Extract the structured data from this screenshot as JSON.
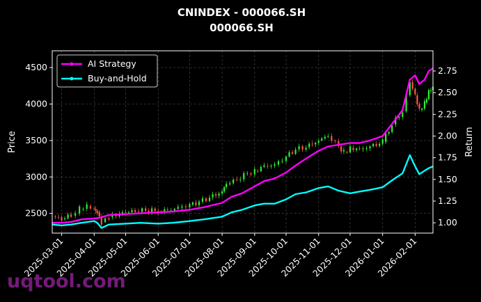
{
  "watermark": "uqtool.com",
  "chart_data": {
    "type": "line",
    "title": "CNINDEX - 000066.SH",
    "subtitle": "000066.SH",
    "xlabel": "",
    "ylabel": "Price",
    "ylabel_right": "Return",
    "x_range": [
      "2025-02-20",
      "2026-02-18"
    ],
    "ylim": [
      2230,
      4730
    ],
    "ylim_right": [
      0.881,
      2.983
    ],
    "grid": true,
    "legend_position": "top-left",
    "x_ticks": [
      "2025-03-01",
      "2025-04-01",
      "2025-05-01",
      "2025-06-01",
      "2025-07-01",
      "2025-08-01",
      "2025-09-01",
      "2025-10-01",
      "2025-11-01",
      "2025-12-01",
      "2026-01-01",
      "2026-02-01"
    ],
    "y_ticks": [
      2500,
      3000,
      3500,
      4000,
      4500
    ],
    "y_ticks_right": [
      "1.00",
      "1.25",
      "1.50",
      "1.75",
      "2.00",
      "2.25",
      "2.50",
      "2.75"
    ],
    "colors": {
      "up": "#33ee33",
      "down": "#ff5544",
      "ai": "#ff00ff",
      "bh": "#00ffff",
      "grid": "#666666"
    },
    "candles_close": [
      [
        "2025-02-20",
        2460
      ],
      [
        "2025-03-01",
        2420
      ],
      [
        "2025-03-10",
        2470
      ],
      [
        "2025-03-18",
        2560
      ],
      [
        "2025-03-25",
        2600
      ],
      [
        "2025-04-01",
        2560
      ],
      [
        "2025-04-04",
        2520
      ],
      [
        "2025-04-08",
        2380
      ],
      [
        "2025-04-15",
        2450
      ],
      [
        "2025-04-25",
        2500
      ],
      [
        "2025-05-01",
        2510
      ],
      [
        "2025-05-10",
        2530
      ],
      [
        "2025-05-20",
        2540
      ],
      [
        "2025-06-01",
        2530
      ],
      [
        "2025-06-10",
        2540
      ],
      [
        "2025-06-20",
        2580
      ],
      [
        "2025-07-01",
        2620
      ],
      [
        "2025-07-10",
        2660
      ],
      [
        "2025-07-20",
        2720
      ],
      [
        "2025-08-01",
        2800
      ],
      [
        "2025-08-05",
        2900
      ],
      [
        "2025-08-15",
        2960
      ],
      [
        "2025-08-25",
        3050
      ],
      [
        "2025-09-01",
        3080
      ],
      [
        "2025-09-10",
        3150
      ],
      [
        "2025-09-20",
        3170
      ],
      [
        "2025-10-01",
        3280
      ],
      [
        "2025-10-10",
        3380
      ],
      [
        "2025-10-20",
        3410
      ],
      [
        "2025-11-01",
        3500
      ],
      [
        "2025-11-10",
        3560
      ],
      [
        "2025-11-20",
        3420
      ],
      [
        "2025-11-25",
        3340
      ],
      [
        "2025-12-01",
        3400
      ],
      [
        "2025-12-10",
        3380
      ],
      [
        "2025-12-20",
        3420
      ],
      [
        "2026-01-01",
        3480
      ],
      [
        "2026-01-10",
        3720
      ],
      [
        "2026-01-20",
        3900
      ],
      [
        "2026-01-27",
        4300
      ],
      [
        "2026-02-01",
        4120
      ],
      [
        "2026-02-05",
        3920
      ],
      [
        "2026-02-10",
        4020
      ],
      [
        "2026-02-14",
        4180
      ],
      [
        "2026-02-18",
        4240
      ]
    ],
    "series": [
      {
        "name": "AI Strategy",
        "values": [
          [
            "2025-02-20",
            1.0
          ],
          [
            "2025-03-01",
            1.0
          ],
          [
            "2025-03-10",
            1.01
          ],
          [
            "2025-03-20",
            1.04
          ],
          [
            "2025-04-01",
            1.05
          ],
          [
            "2025-04-07",
            1.06
          ],
          [
            "2025-04-15",
            1.09
          ],
          [
            "2025-05-01",
            1.1
          ],
          [
            "2025-05-15",
            1.11
          ],
          [
            "2025-06-01",
            1.12
          ],
          [
            "2025-06-15",
            1.13
          ],
          [
            "2025-07-01",
            1.15
          ],
          [
            "2025-07-15",
            1.18
          ],
          [
            "2025-08-01",
            1.23
          ],
          [
            "2025-08-10",
            1.3
          ],
          [
            "2025-08-20",
            1.34
          ],
          [
            "2025-09-01",
            1.42
          ],
          [
            "2025-09-10",
            1.48
          ],
          [
            "2025-09-20",
            1.51
          ],
          [
            "2025-10-01",
            1.58
          ],
          [
            "2025-10-10",
            1.66
          ],
          [
            "2025-10-20",
            1.74
          ],
          [
            "2025-11-01",
            1.83
          ],
          [
            "2025-11-10",
            1.88
          ],
          [
            "2025-11-20",
            1.9
          ],
          [
            "2025-12-01",
            1.92
          ],
          [
            "2025-12-10",
            1.92
          ],
          [
            "2025-12-20",
            1.95
          ],
          [
            "2026-01-01",
            2.0
          ],
          [
            "2026-01-10",
            2.14
          ],
          [
            "2026-01-20",
            2.3
          ],
          [
            "2026-01-27",
            2.65
          ],
          [
            "2026-02-01",
            2.7
          ],
          [
            "2026-02-05",
            2.6
          ],
          [
            "2026-02-10",
            2.65
          ],
          [
            "2026-02-14",
            2.75
          ],
          [
            "2026-02-18",
            2.78
          ]
        ]
      },
      {
        "name": "Buy-and-Hold",
        "values": [
          [
            "2025-02-20",
            0.98
          ],
          [
            "2025-03-01",
            0.97
          ],
          [
            "2025-03-10",
            0.98
          ],
          [
            "2025-03-20",
            1.0
          ],
          [
            "2025-04-01",
            1.02
          ],
          [
            "2025-04-04",
            1.0
          ],
          [
            "2025-04-08",
            0.94
          ],
          [
            "2025-04-15",
            0.98
          ],
          [
            "2025-05-01",
            0.99
          ],
          [
            "2025-05-15",
            1.0
          ],
          [
            "2025-06-01",
            0.99
          ],
          [
            "2025-06-15",
            1.0
          ],
          [
            "2025-07-01",
            1.02
          ],
          [
            "2025-07-15",
            1.04
          ],
          [
            "2025-08-01",
            1.07
          ],
          [
            "2025-08-10",
            1.12
          ],
          [
            "2025-08-20",
            1.15
          ],
          [
            "2025-09-01",
            1.2
          ],
          [
            "2025-09-10",
            1.22
          ],
          [
            "2025-09-20",
            1.22
          ],
          [
            "2025-10-01",
            1.27
          ],
          [
            "2025-10-10",
            1.33
          ],
          [
            "2025-10-20",
            1.35
          ],
          [
            "2025-11-01",
            1.4
          ],
          [
            "2025-11-10",
            1.42
          ],
          [
            "2025-11-20",
            1.37
          ],
          [
            "2025-12-01",
            1.34
          ],
          [
            "2025-12-10",
            1.36
          ],
          [
            "2025-12-20",
            1.38
          ],
          [
            "2026-01-01",
            1.41
          ],
          [
            "2026-01-10",
            1.49
          ],
          [
            "2026-01-20",
            1.57
          ],
          [
            "2026-01-27",
            1.78
          ],
          [
            "2026-02-01",
            1.65
          ],
          [
            "2026-02-05",
            1.56
          ],
          [
            "2026-02-10",
            1.6
          ],
          [
            "2026-02-14",
            1.63
          ],
          [
            "2026-02-18",
            1.65
          ]
        ]
      }
    ]
  }
}
